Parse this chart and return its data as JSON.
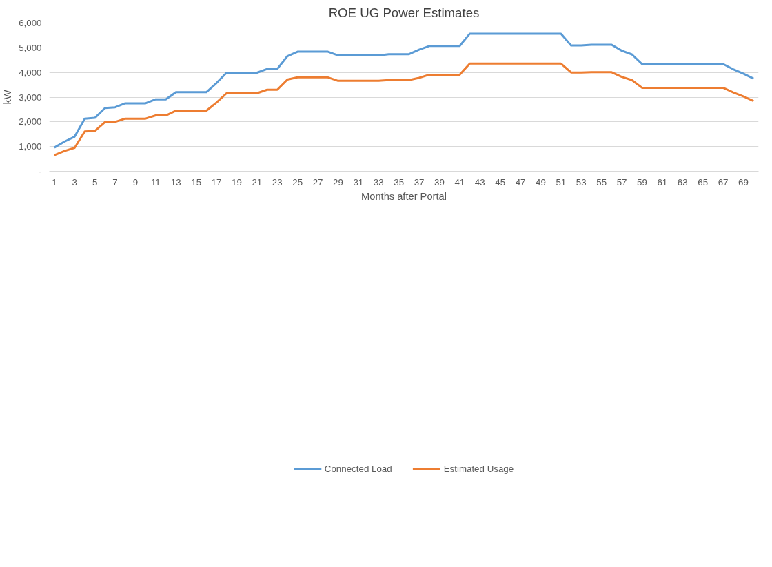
{
  "chart_data": {
    "type": "line",
    "title": "ROE UG Power Estimates",
    "xlabel": "Months after Portal",
    "ylabel": "kW",
    "x": [
      1,
      2,
      3,
      4,
      5,
      6,
      7,
      8,
      9,
      10,
      11,
      12,
      13,
      14,
      15,
      16,
      17,
      18,
      19,
      20,
      21,
      22,
      23,
      24,
      25,
      26,
      27,
      28,
      29,
      30,
      31,
      32,
      33,
      34,
      35,
      36,
      37,
      38,
      39,
      40,
      41,
      42,
      43,
      44,
      45,
      46,
      47,
      48,
      49,
      50,
      51,
      52,
      53,
      54,
      55,
      56,
      57,
      58,
      59,
      60,
      61,
      62,
      63,
      64,
      65,
      66,
      67,
      68,
      69,
      70
    ],
    "series": [
      {
        "name": "Connected Load",
        "color": "#5b9bd5",
        "values": [
          960,
          1200,
          1400,
          2130,
          2160,
          2560,
          2590,
          2750,
          2750,
          2750,
          2910,
          2910,
          3200,
          3200,
          3200,
          3200,
          3570,
          3990,
          3990,
          3990,
          3990,
          4140,
          4140,
          4660,
          4840,
          4840,
          4840,
          4840,
          4690,
          4690,
          4690,
          4690,
          4690,
          4740,
          4740,
          4740,
          4920,
          5070,
          5070,
          5070,
          5070,
          5570,
          5570,
          5570,
          5570,
          5570,
          5570,
          5570,
          5570,
          5570,
          5570,
          5090,
          5090,
          5120,
          5120,
          5120,
          4880,
          4730,
          4340,
          4340,
          4340,
          4340,
          4340,
          4340,
          4340,
          4340,
          4340,
          4130,
          3950,
          3750
        ]
      },
      {
        "name": "Estimated Usage",
        "color": "#ed7d31",
        "values": [
          650,
          820,
          950,
          1610,
          1630,
          1990,
          2000,
          2130,
          2130,
          2130,
          2260,
          2260,
          2450,
          2450,
          2450,
          2450,
          2780,
          3160,
          3160,
          3160,
          3160,
          3300,
          3300,
          3710,
          3800,
          3800,
          3800,
          3800,
          3660,
          3660,
          3660,
          3660,
          3660,
          3690,
          3690,
          3690,
          3780,
          3910,
          3910,
          3910,
          3910,
          4360,
          4360,
          4360,
          4360,
          4360,
          4360,
          4360,
          4360,
          4360,
          4360,
          4000,
          4000,
          4010,
          4010,
          4010,
          3820,
          3690,
          3380,
          3380,
          3380,
          3380,
          3380,
          3380,
          3380,
          3380,
          3380,
          3190,
          3030,
          2840
        ]
      }
    ],
    "xlim": [
      0.5,
      70.5
    ],
    "xticks": [
      1,
      3,
      5,
      7,
      9,
      11,
      13,
      15,
      17,
      19,
      21,
      23,
      25,
      27,
      29,
      31,
      33,
      35,
      37,
      39,
      41,
      43,
      45,
      47,
      49,
      51,
      53,
      55,
      57,
      59,
      61,
      63,
      65,
      67,
      69
    ],
    "ylim": [
      0,
      6000
    ],
    "yticks": [
      {
        "value": 0,
        "label": "-"
      },
      {
        "value": 1000,
        "label": "1,000"
      },
      {
        "value": 2000,
        "label": "2,000"
      },
      {
        "value": 3000,
        "label": "3,000"
      },
      {
        "value": 4000,
        "label": "4,000"
      },
      {
        "value": 5000,
        "label": "5,000"
      },
      {
        "value": 6000,
        "label": "6,000"
      }
    ],
    "grid": "y",
    "legend": "bottom",
    "marker": "none",
    "line_style": "solid"
  }
}
